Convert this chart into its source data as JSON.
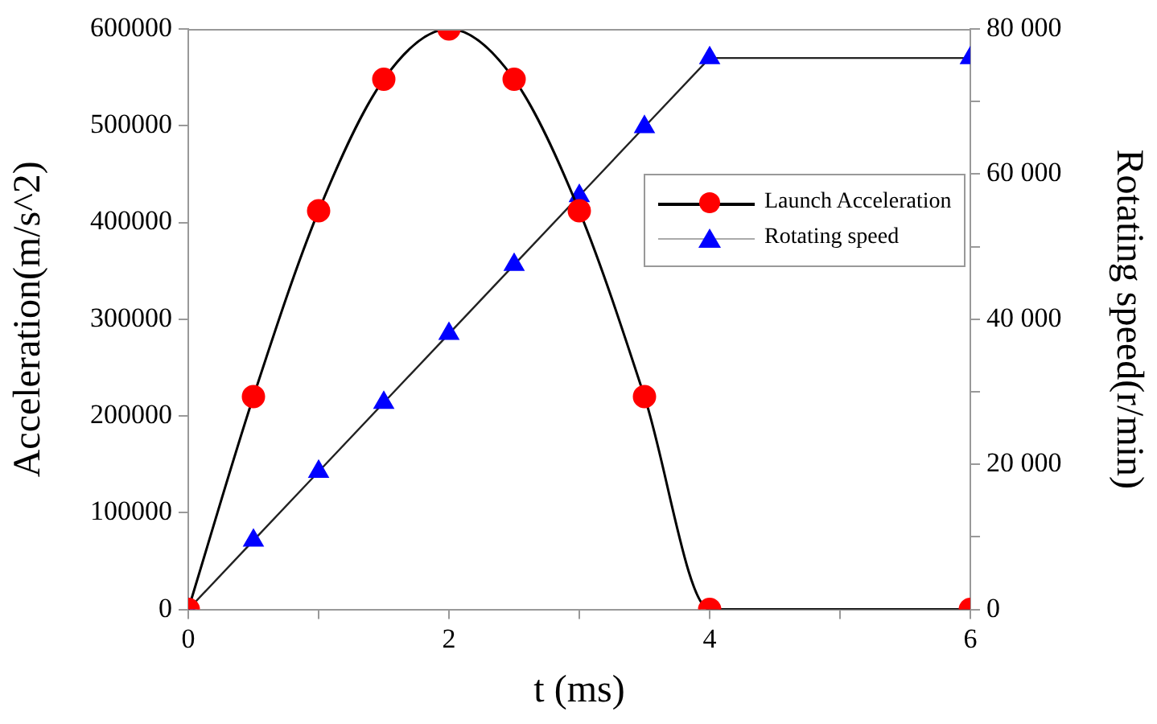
{
  "chart_data": {
    "type": "line",
    "xlabel": "t (ms)",
    "ylabel": "Acceleration(m/s^2)",
    "y2label": "Rotating speed(r/min)",
    "x": [
      0,
      0.5,
      1,
      1.5,
      2,
      2.5,
      3,
      3.5,
      4,
      6
    ],
    "series": [
      {
        "name": "Launch Acceleration",
        "color": "#ff0000",
        "marker": "circle",
        "values": [
          0,
          220000,
          412000,
          548000,
          600000,
          548000,
          412000,
          220000,
          0,
          0
        ]
      },
      {
        "name": "Rotating speed",
        "color": "#0000ff",
        "marker": "triangle",
        "axis": "y2",
        "values": [
          0,
          9500,
          19000,
          28500,
          38000,
          47500,
          57000,
          66500,
          76000,
          76000
        ]
      }
    ],
    "xlim": [
      0,
      6
    ],
    "xticks": [
      0,
      {
        "value": 1,
        "label": null
      },
      2,
      {
        "value": 3,
        "label": null
      },
      4,
      {
        "value": 5,
        "label": null
      },
      6
    ],
    "ylim": [
      0,
      600000
    ],
    "yticks": [
      0,
      100000,
      200000,
      300000,
      400000,
      500000,
      600000
    ],
    "y2lim": [
      0,
      80000
    ],
    "y2ticks": [
      {
        "value": 0,
        "label": "0"
      },
      {
        "value": 10000,
        "label": null
      },
      {
        "value": 20000,
        "label": "20 000"
      },
      {
        "value": 30000,
        "label": null
      },
      {
        "value": 40000,
        "label": "40 000"
      },
      {
        "value": 50000,
        "label": null
      },
      {
        "value": 60000,
        "label": "60 000"
      },
      {
        "value": 70000,
        "label": null
      },
      {
        "value": 80000,
        "label": "80 000"
      }
    ],
    "grid": false,
    "legend": "right",
    "line_style": "solid"
  }
}
